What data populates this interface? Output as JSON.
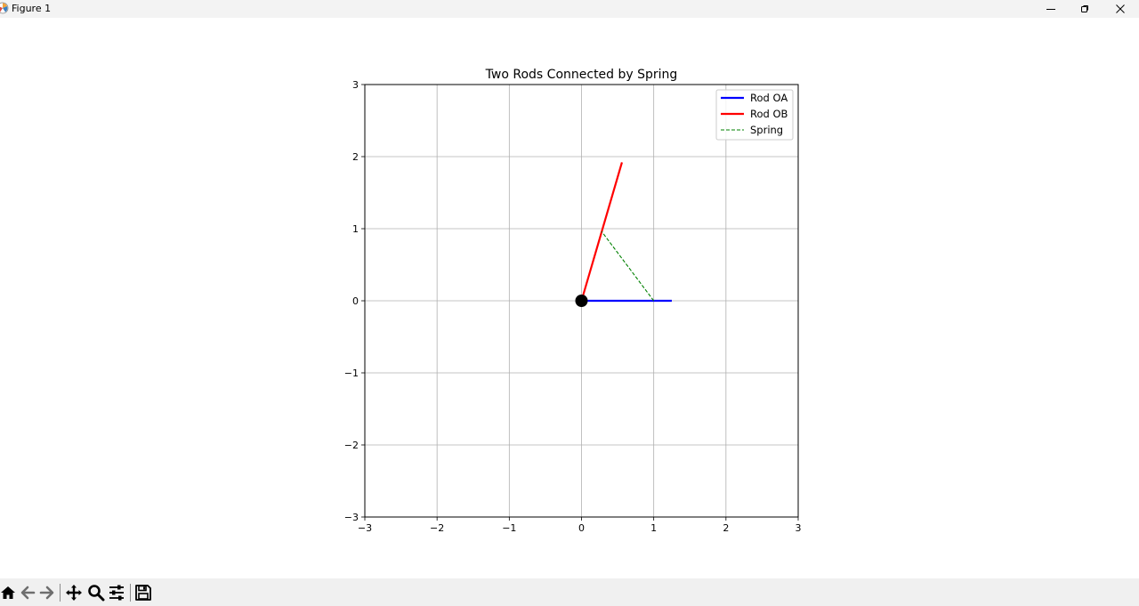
{
  "window": {
    "title": "Figure 1",
    "icons": [
      "matplotlib-icon",
      "minimize-icon",
      "restore-icon",
      "close-icon"
    ]
  },
  "toolbar": {
    "icons": [
      "home-icon",
      "back-arrow-icon",
      "forward-arrow-icon",
      "pan-icon",
      "zoom-icon",
      "configure-subplots-icon",
      "save-icon"
    ]
  },
  "chart_data": {
    "type": "line",
    "title": "Two Rods Connected by Spring",
    "xlim": [
      -3,
      3
    ],
    "ylim": [
      -3,
      3
    ],
    "x_ticks": [
      -3,
      -2,
      -1,
      0,
      1,
      2,
      3
    ],
    "y_ticks": [
      -3,
      -2,
      -1,
      0,
      1,
      2,
      3
    ],
    "x_tick_labels": [
      "−3",
      "−2",
      "−1",
      "0",
      "1",
      "2",
      "3"
    ],
    "y_tick_labels": [
      "−3",
      "−2",
      "−1",
      "0",
      "1",
      "2",
      "3"
    ],
    "grid": true,
    "legend_position": "top-right",
    "series": [
      {
        "name": "Rod OA",
        "color": "#0000ff",
        "style": "solid",
        "x": [
          0,
          1.25
        ],
        "y": [
          0,
          0
        ]
      },
      {
        "name": "Rod OB",
        "color": "#ff0000",
        "style": "solid",
        "x": [
          0,
          0.56
        ],
        "y": [
          0,
          1.92
        ]
      },
      {
        "name": "Spring",
        "color": "#008000",
        "style": "dashed",
        "x": [
          1.0,
          0.28
        ],
        "y": [
          0,
          0.96
        ]
      }
    ],
    "pivot": {
      "x": 0,
      "y": 0,
      "color": "#000000"
    }
  }
}
